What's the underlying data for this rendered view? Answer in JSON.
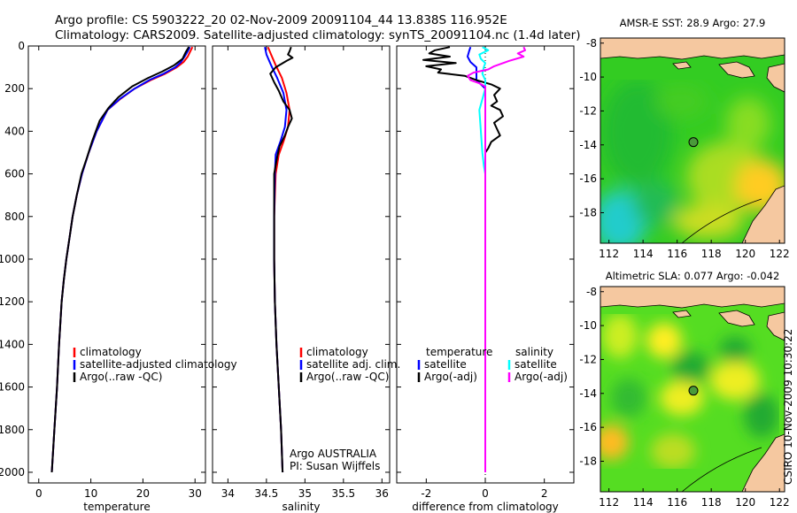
{
  "header": {
    "line1": "Argo profile: CS 5903222_20 02-Nov-2009 20091104_44 13.838S 116.952E",
    "line2": "Climatology: CARS2009. Satellite-adjusted climatology: synTS_20091104.nc (1.4d later)"
  },
  "colors": {
    "climatology": "#ff0000",
    "satellite": "#0000ff",
    "argo": "#000000",
    "cyan": "#00ffff",
    "magenta": "#ff00ff",
    "land": "#f5c8a0",
    "marker": "#4a9a3a"
  },
  "footer": {
    "stamp": "CSIRO 10-Nov-2009 10:30:22"
  },
  "chart_data": [
    {
      "type": "line",
      "name": "temperature-profile",
      "xlabel": "temperature",
      "xlim": [
        -2,
        32
      ],
      "ylim": [
        2050,
        0
      ],
      "x_ticks": [
        "0",
        "10",
        "20",
        "30"
      ],
      "y_ticks": [
        "0",
        "200",
        "400",
        "600",
        "800",
        "1000",
        "1200",
        "1400",
        "1600",
        "1800",
        "2000"
      ],
      "legend": [
        "climatology",
        "satellite-adjusted climatology",
        "Argo(..raw -QC)"
      ],
      "series": [
        {
          "name": "climatology",
          "color": "red",
          "points": [
            [
              29.5,
              5
            ],
            [
              29.1,
              25
            ],
            [
              28.6,
              50
            ],
            [
              27.8,
              75
            ],
            [
              26.5,
              100
            ],
            [
              24.3,
              130
            ],
            [
              21.5,
              160
            ],
            [
              18.4,
              200
            ],
            [
              15.6,
              250
            ],
            [
              13.2,
              300
            ],
            [
              11.1,
              400
            ],
            [
              9.6,
              500
            ],
            [
              8.3,
              600
            ],
            [
              7.3,
              700
            ],
            [
              6.5,
              800
            ],
            [
              5.9,
              900
            ],
            [
              5.3,
              1000
            ],
            [
              4.8,
              1100
            ],
            [
              4.4,
              1200
            ],
            [
              3.9,
              1400
            ],
            [
              3.5,
              1600
            ],
            [
              3.0,
              1800
            ],
            [
              2.5,
              2000
            ]
          ]
        },
        {
          "name": "satellite-adjusted climatology",
          "color": "blue",
          "points": [
            [
              29.0,
              5
            ],
            [
              28.6,
              25
            ],
            [
              28.0,
              50
            ],
            [
              27.3,
              75
            ],
            [
              26.2,
              100
            ],
            [
              24.0,
              130
            ],
            [
              21.2,
              160
            ],
            [
              18.4,
              200
            ],
            [
              15.5,
              250
            ],
            [
              13.2,
              300
            ],
            [
              11.1,
              400
            ],
            [
              9.6,
              500
            ],
            [
              8.3,
              600
            ],
            [
              7.3,
              700
            ],
            [
              6.5,
              800
            ],
            [
              5.9,
              900
            ],
            [
              5.3,
              1000
            ],
            [
              4.8,
              1100
            ],
            [
              4.4,
              1200
            ],
            [
              3.9,
              1400
            ],
            [
              3.5,
              1600
            ],
            [
              3.0,
              1800
            ],
            [
              2.5,
              2000
            ]
          ]
        },
        {
          "name": "Argo(..raw -QC)",
          "color": "black",
          "points": [
            [
              28.8,
              5
            ],
            [
              28.2,
              30
            ],
            [
              27.6,
              60
            ],
            [
              26.0,
              90
            ],
            [
              23.7,
              120
            ],
            [
              21.0,
              150
            ],
            [
              17.9,
              190
            ],
            [
              15.3,
              240
            ],
            [
              13.4,
              290
            ],
            [
              11.7,
              350
            ],
            [
              10.2,
              450
            ],
            [
              9.3,
              520
            ],
            [
              8.2,
              600
            ],
            [
              7.3,
              700
            ],
            [
              6.5,
              800
            ],
            [
              5.9,
              900
            ],
            [
              5.3,
              1000
            ],
            [
              4.8,
              1100
            ],
            [
              4.4,
              1200
            ],
            [
              3.9,
              1400
            ],
            [
              3.5,
              1600
            ],
            [
              3.0,
              1800
            ],
            [
              2.5,
              2000
            ]
          ]
        }
      ]
    },
    {
      "type": "line",
      "name": "salinity-profile",
      "xlabel": "salinity",
      "xlim": [
        33.8,
        36.1
      ],
      "ylim": [
        2050,
        0
      ],
      "x_ticks": [
        "34",
        "34.5",
        "35",
        "35.5",
        "36"
      ],
      "legend": [
        "climatology",
        "satellite adj. clim.",
        "Argo(..raw -QC)"
      ],
      "annotation": [
        "Argo AUSTRALIA",
        "PI: Susan Wijffels"
      ],
      "series": [
        {
          "name": "climatology",
          "color": "red",
          "points": [
            [
              34.52,
              5
            ],
            [
              34.56,
              40
            ],
            [
              34.62,
              90
            ],
            [
              34.7,
              150
            ],
            [
              34.76,
              220
            ],
            [
              34.8,
              300
            ],
            [
              34.78,
              380
            ],
            [
              34.72,
              450
            ],
            [
              34.66,
              510
            ],
            [
              34.62,
              600
            ],
            [
              34.6,
              800
            ],
            [
              34.6,
              1000
            ],
            [
              34.61,
              1200
            ],
            [
              34.63,
              1400
            ],
            [
              34.66,
              1600
            ],
            [
              34.69,
              1800
            ],
            [
              34.71,
              2000
            ]
          ]
        },
        {
          "name": "satellite adj. clim.",
          "color": "blue",
          "points": [
            [
              34.48,
              5
            ],
            [
              34.5,
              40
            ],
            [
              34.56,
              90
            ],
            [
              34.64,
              150
            ],
            [
              34.72,
              220
            ],
            [
              34.76,
              300
            ],
            [
              34.74,
              380
            ],
            [
              34.68,
              450
            ],
            [
              34.62,
              510
            ],
            [
              34.61,
              600
            ],
            [
              34.6,
              800
            ],
            [
              34.6,
              1000
            ],
            [
              34.61,
              1200
            ],
            [
              34.63,
              1400
            ],
            [
              34.66,
              1600
            ],
            [
              34.69,
              1800
            ],
            [
              34.71,
              2000
            ]
          ]
        },
        {
          "name": "Argo(..raw -QC)",
          "color": "black",
          "points": [
            [
              34.82,
              5
            ],
            [
              34.8,
              25
            ],
            [
              34.78,
              40
            ],
            [
              34.84,
              55
            ],
            [
              34.76,
              70
            ],
            [
              34.62,
              100
            ],
            [
              34.55,
              130
            ],
            [
              34.6,
              170
            ],
            [
              34.66,
              210
            ],
            [
              34.72,
              260
            ],
            [
              34.8,
              300
            ],
            [
              34.83,
              340
            ],
            [
              34.78,
              380
            ],
            [
              34.74,
              420
            ],
            [
              34.67,
              470
            ],
            [
              34.64,
              520
            ],
            [
              34.6,
              600
            ],
            [
              34.6,
              800
            ],
            [
              34.6,
              1000
            ],
            [
              34.61,
              1200
            ],
            [
              34.63,
              1400
            ],
            [
              34.66,
              1600
            ],
            [
              34.69,
              1800
            ],
            [
              34.71,
              2000
            ]
          ]
        }
      ]
    },
    {
      "type": "line",
      "name": "difference-profile",
      "xlabel": "difference from climatology",
      "xlim": [
        -3,
        3
      ],
      "ylim": [
        2050,
        0
      ],
      "x_ticks": [
        "-2",
        "0",
        "2"
      ],
      "legend_left_title": "temperature",
      "legend_left": [
        "satellite",
        "Argo(-adj)"
      ],
      "legend_right_title": "salinity",
      "legend_right": [
        "satellite",
        "Argo(-adj)"
      ],
      "series": [
        {
          "name": "temperature satellite",
          "color": "blue",
          "points": [
            [
              -0.5,
              5
            ],
            [
              -0.55,
              25
            ],
            [
              -0.6,
              50
            ],
            [
              -0.5,
              75
            ],
            [
              -0.3,
              100
            ],
            [
              -0.3,
              130
            ],
            [
              -0.3,
              160
            ],
            [
              0,
              200
            ],
            [
              0,
              300
            ],
            [
              0,
              500
            ],
            [
              0,
              1000
            ],
            [
              0,
              2000
            ]
          ]
        },
        {
          "name": "temperature Argo(-adj)",
          "color": "black",
          "points": [
            [
              -1.2,
              5
            ],
            [
              -1.7,
              20
            ],
            [
              -1.9,
              35
            ],
            [
              -1.2,
              50
            ],
            [
              -2.1,
              65
            ],
            [
              -1.0,
              80
            ],
            [
              -2.0,
              95
            ],
            [
              -1.5,
              110
            ],
            [
              -1.6,
              125
            ],
            [
              -0.7,
              140
            ],
            [
              -0.3,
              160
            ],
            [
              0.2,
              180
            ],
            [
              0.5,
              200
            ],
            [
              0.3,
              230
            ],
            [
              0.4,
              260
            ],
            [
              0.2,
              280
            ],
            [
              0.5,
              300
            ],
            [
              0.6,
              330
            ],
            [
              0.3,
              360
            ],
            [
              0.4,
              390
            ],
            [
              0.5,
              420
            ],
            [
              0.2,
              450
            ],
            [
              0.1,
              480
            ],
            [
              0,
              500
            ],
            [
              0,
              600
            ],
            [
              0,
              800
            ],
            [
              0,
              1000
            ],
            [
              0,
              2000
            ]
          ]
        },
        {
          "name": "salinity satellite",
          "color": "cyan",
          "points": [
            [
              -0.1,
              5
            ],
            [
              0.1,
              20
            ],
            [
              -0.2,
              40
            ],
            [
              -0.15,
              60
            ],
            [
              0,
              80
            ],
            [
              -0.05,
              100
            ],
            [
              -0.1,
              130
            ],
            [
              0,
              160
            ],
            [
              0,
              200
            ],
            [
              -0.1,
              250
            ],
            [
              -0.2,
              300
            ],
            [
              -0.15,
              400
            ],
            [
              -0.1,
              500
            ],
            [
              -0.05,
              560
            ],
            [
              0,
              600
            ],
            [
              0,
              800
            ],
            [
              0,
              1000
            ],
            [
              0,
              2000
            ]
          ]
        },
        {
          "name": "salinity Argo(-adj)",
          "color": "magenta",
          "points": [
            [
              1.3,
              5
            ],
            [
              1.35,
              20
            ],
            [
              1.1,
              35
            ],
            [
              1.3,
              50
            ],
            [
              0.8,
              70
            ],
            [
              0.3,
              95
            ],
            [
              0.1,
              110
            ],
            [
              -0.4,
              125
            ],
            [
              -0.6,
              140
            ],
            [
              -0.5,
              160
            ],
            [
              -0.2,
              175
            ],
            [
              0,
              190
            ],
            [
              0,
              300
            ],
            [
              0,
              600
            ],
            [
              0,
              1000
            ],
            [
              0,
              2000
            ]
          ]
        }
      ]
    },
    {
      "type": "heatmap",
      "name": "sst-map",
      "title": "AMSR-E SST: 28.9 Argo: 27.9",
      "xlim": [
        111.5,
        122.3
      ],
      "ylim": [
        -19.8,
        -7.7
      ],
      "x_ticks": [
        "112",
        "114",
        "116",
        "118",
        "120",
        "122"
      ],
      "y_ticks": [
        "-8",
        "-10",
        "-12",
        "-14",
        "-16",
        "-18"
      ],
      "argo_position": {
        "lon": 116.952,
        "lat": -13.838
      }
    },
    {
      "type": "heatmap",
      "name": "sla-map",
      "title": "Altimetric SLA: 0.077 Argo: -0.042",
      "xlim": [
        111.5,
        122.3
      ],
      "ylim": [
        -19.8,
        -7.7
      ],
      "x_ticks": [
        "112",
        "114",
        "116",
        "118",
        "120",
        "122"
      ],
      "y_ticks": [
        "-8",
        "-10",
        "-12",
        "-14",
        "-16",
        "-18"
      ],
      "argo_position": {
        "lon": 116.952,
        "lat": -13.838
      }
    }
  ]
}
